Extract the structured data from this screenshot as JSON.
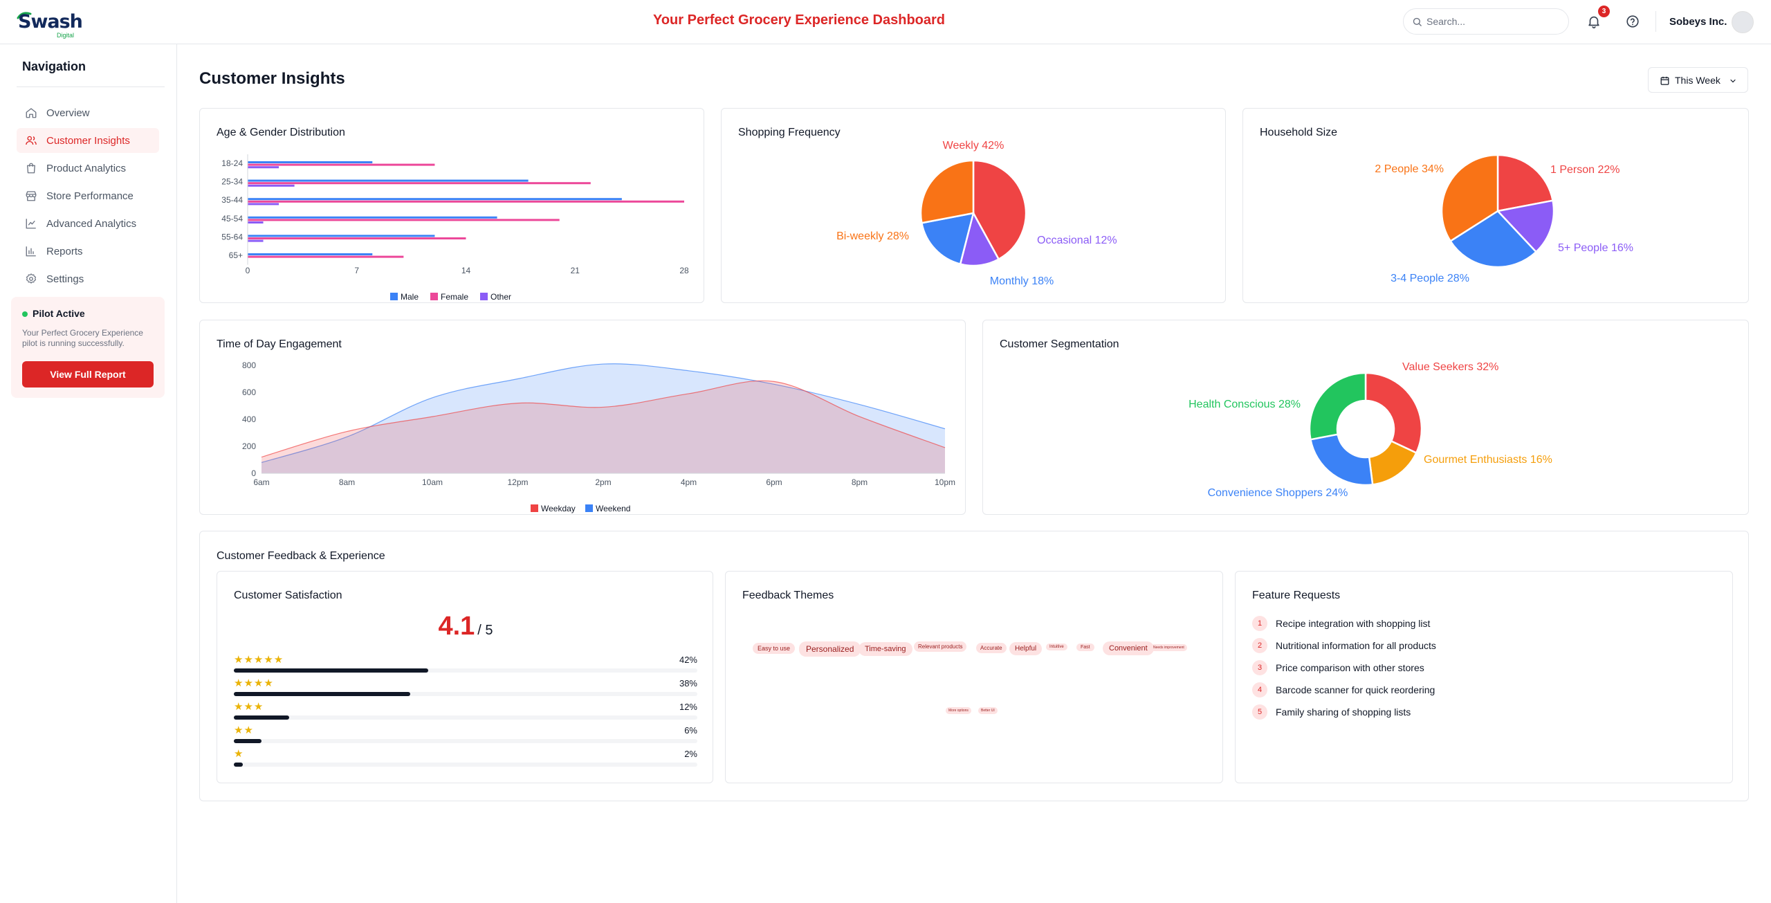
{
  "app": {
    "logo": "Swash",
    "logo_sub": "Digital",
    "title": "Your Perfect Grocery Experience Dashboard",
    "search_placeholder": "Search...",
    "notification_count": "3",
    "company": "Sobeys Inc."
  },
  "sidebar": {
    "title": "Navigation",
    "items": [
      {
        "label": "Overview",
        "icon": "home-icon",
        "active": false
      },
      {
        "label": "Customer Insights",
        "icon": "users-icon",
        "active": true
      },
      {
        "label": "Product Analytics",
        "icon": "shopping-bag-icon",
        "active": false
      },
      {
        "label": "Store Performance",
        "icon": "store-icon",
        "active": false
      },
      {
        "label": "Advanced Analytics",
        "icon": "line-chart-icon",
        "active": false
      },
      {
        "label": "Reports",
        "icon": "bar-chart-icon",
        "active": false
      },
      {
        "label": "Settings",
        "icon": "gear-icon",
        "active": false
      }
    ],
    "pilot": {
      "title": "Pilot Active",
      "description": "Your Perfect Grocery Experience pilot is running successfully.",
      "button": "View Full Report"
    }
  },
  "main": {
    "title": "Customer Insights",
    "period": "This Week",
    "age_gender": {
      "title": "Age & Gender Distribution"
    },
    "shopping_frequency": {
      "title": "Shopping Frequency"
    },
    "household_size": {
      "title": "Household Size"
    },
    "time_of_day": {
      "title": "Time of Day Engagement"
    },
    "segmentation": {
      "title": "Customer Segmentation"
    },
    "feedback": {
      "title": "Customer Feedback & Experience",
      "satisfaction": {
        "title": "Customer Satisfaction",
        "score": "4.1",
        "out_of": "/ 5",
        "rows": [
          {
            "stars": "★★★★★",
            "pct": "42%",
            "value": 42
          },
          {
            "stars": "★★★★",
            "pct": "38%",
            "value": 38
          },
          {
            "stars": "★★★",
            "pct": "12%",
            "value": 12
          },
          {
            "stars": "★★",
            "pct": "6%",
            "value": 6
          },
          {
            "stars": "★",
            "pct": "2%",
            "value": 2
          }
        ]
      },
      "themes": {
        "title": "Feedback Themes",
        "tags": [
          "Easy to use",
          "Personalized",
          "Time-saving",
          "Relevant products",
          "Accurate",
          "Helpful",
          "Intuitive",
          "Fast",
          "Convenient",
          "Needs improvement",
          "More options",
          "Better UI"
        ]
      },
      "requests": {
        "title": "Feature Requests",
        "items": [
          {
            "num": "1",
            "text": "Recipe integration with shopping list"
          },
          {
            "num": "2",
            "text": "Nutritional information for all products"
          },
          {
            "num": "3",
            "text": "Price comparison with other stores"
          },
          {
            "num": "4",
            "text": "Barcode scanner for quick reordering"
          },
          {
            "num": "5",
            "text": "Family sharing of shopping lists"
          }
        ]
      }
    }
  },
  "chart_data": [
    {
      "type": "bar",
      "orientation": "horizontal",
      "title": "Age & Gender Distribution",
      "categories": [
        "18-24",
        "25-34",
        "35-44",
        "45-54",
        "55-64",
        "65+"
      ],
      "series": [
        {
          "name": "Male",
          "color": "#3b82f6",
          "values": [
            8,
            18,
            24,
            16,
            12,
            8
          ]
        },
        {
          "name": "Female",
          "color": "#ec4899",
          "values": [
            12,
            22,
            28,
            20,
            14,
            10
          ]
        },
        {
          "name": "Other",
          "color": "#8b5cf6",
          "values": [
            2,
            3,
            2,
            1,
            1,
            0
          ]
        }
      ],
      "xticks": [
        "0",
        "7",
        "14",
        "21",
        "28"
      ],
      "xlim": [
        0,
        28
      ],
      "legend": "bottom"
    },
    {
      "type": "pie",
      "title": "Shopping Frequency",
      "slices": [
        {
          "label": "Weekly 42%",
          "value": 42,
          "color": "#ef4444"
        },
        {
          "label": "Occasional 12%",
          "value": 12,
          "color": "#8b5cf6"
        },
        {
          "label": "Monthly 18%",
          "value": 18,
          "color": "#3b82f6"
        },
        {
          "label": "Bi-weekly 28%",
          "value": 28,
          "color": "#f97316"
        }
      ]
    },
    {
      "type": "pie",
      "title": "Household Size",
      "slices": [
        {
          "label": "1 Person 22%",
          "value": 22,
          "color": "#ef4444"
        },
        {
          "label": "5+ People 16%",
          "value": 16,
          "color": "#8b5cf6"
        },
        {
          "label": "3-4 People 28%",
          "value": 28,
          "color": "#3b82f6"
        },
        {
          "label": "2 People 34%",
          "value": 34,
          "color": "#f97316"
        }
      ]
    },
    {
      "type": "area",
      "title": "Time of Day Engagement",
      "x": [
        "6am",
        "8am",
        "10am",
        "12pm",
        "2pm",
        "4pm",
        "6pm",
        "8pm",
        "10pm"
      ],
      "yticks": [
        "0",
        "200",
        "400",
        "600",
        "800"
      ],
      "ylim": [
        0,
        800
      ],
      "series": [
        {
          "name": "Weekday",
          "color": "#ef4444",
          "values": [
            120,
            310,
            420,
            520,
            490,
            590,
            680,
            420,
            190
          ]
        },
        {
          "name": "Weekend",
          "color": "#3b82f6",
          "values": [
            80,
            270,
            560,
            700,
            810,
            760,
            660,
            510,
            330
          ]
        }
      ],
      "legend": "bottom"
    },
    {
      "type": "pie",
      "subtype": "donut",
      "title": "Customer Segmentation",
      "slices": [
        {
          "label": "Value Seekers 32%",
          "value": 32,
          "color": "#ef4444"
        },
        {
          "label": "Gourmet Enthusiasts 16%",
          "value": 16,
          "color": "#f59e0b"
        },
        {
          "label": "Convenience Shoppers 24%",
          "value": 24,
          "color": "#3b82f6"
        },
        {
          "label": "Health Conscious 28%",
          "value": 28,
          "color": "#22c55e"
        }
      ]
    }
  ]
}
